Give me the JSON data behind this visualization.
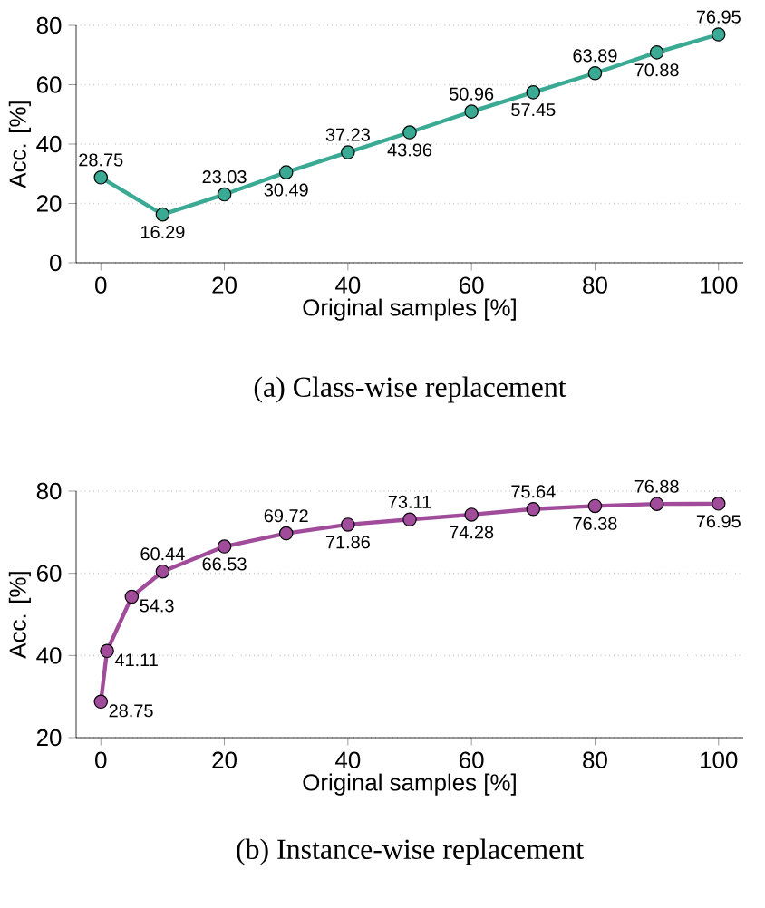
{
  "chart_data": [
    {
      "type": "line",
      "xlabel": "Original samples [%]",
      "ylabel": "Acc. [%]",
      "annotations": [
        "(a) Class-wise replacement"
      ],
      "x": [
        0,
        10,
        20,
        30,
        40,
        50,
        60,
        70,
        80,
        90,
        100
      ],
      "values": [
        28.75,
        16.29,
        23.03,
        30.49,
        37.23,
        43.96,
        50.96,
        57.45,
        63.89,
        70.88,
        76.95
      ],
      "color": "#3aaa95",
      "xlim": [
        -4,
        104
      ],
      "ylim": [
        0,
        80
      ],
      "xticks": [
        0,
        20,
        40,
        60,
        80,
        100
      ],
      "yticks": [
        0,
        20,
        40,
        60,
        80
      ],
      "grid": "y",
      "marker": "circle",
      "line_style": "solid",
      "data_labels": true
    },
    {
      "type": "line",
      "xlabel": "Original samples [%]",
      "ylabel": "Acc. [%]",
      "annotations": [
        "(b) Instance-wise replacement"
      ],
      "x": [
        0,
        1,
        5,
        10,
        20,
        30,
        40,
        50,
        60,
        70,
        80,
        90,
        100
      ],
      "values": [
        28.75,
        41.11,
        54.3,
        60.44,
        66.53,
        69.72,
        71.86,
        73.11,
        74.28,
        75.64,
        76.38,
        76.88,
        76.95
      ],
      "color": "#a04c9a",
      "xlim": [
        -4,
        104
      ],
      "ylim": [
        20,
        80
      ],
      "xticks": [
        0,
        20,
        40,
        60,
        80,
        100
      ],
      "yticks": [
        20,
        40,
        60,
        80
      ],
      "grid": "y",
      "marker": "circle",
      "line_style": "solid",
      "data_labels": true
    }
  ]
}
